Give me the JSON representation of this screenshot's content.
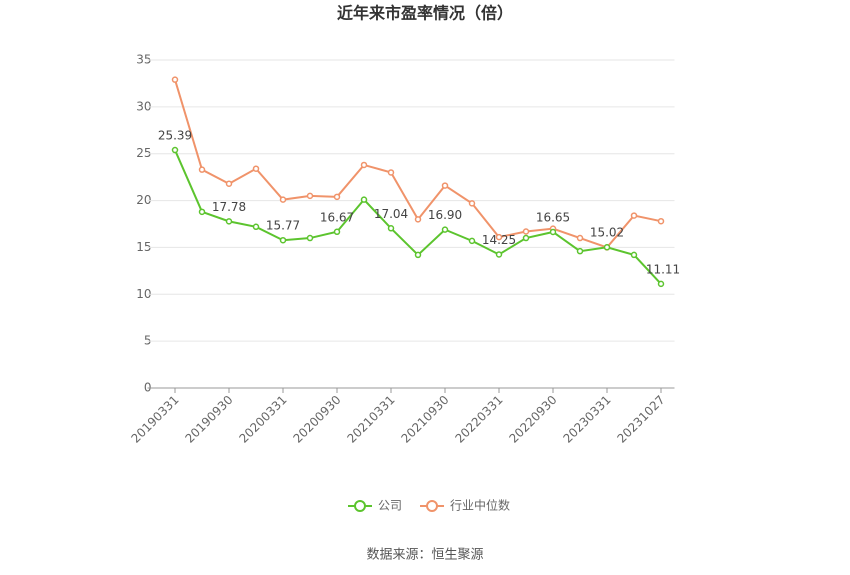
{
  "chart_data": {
    "type": "line",
    "title": "近年来市盈率情况（倍）",
    "source": "数据来源：恒生聚源",
    "categories": [
      "20190331",
      null,
      "20190930",
      null,
      "20200331",
      null,
      "20200930",
      null,
      "20210331",
      null,
      "20210930",
      null,
      "20220331",
      null,
      "20220930",
      null,
      "20230331",
      null,
      "20231027"
    ],
    "series": [
      {
        "name": "公司",
        "color": "#5cc42e",
        "values": [
          25.39,
          18.8,
          17.78,
          17.2,
          15.77,
          16.0,
          16.67,
          20.1,
          17.04,
          14.2,
          16.9,
          15.7,
          14.25,
          16.0,
          16.65,
          14.6,
          15.02,
          14.2,
          11.11
        ],
        "value_labels": [
          "25.39",
          null,
          "17.78",
          null,
          "15.77",
          null,
          "16.67",
          null,
          "17.04",
          null,
          "16.90",
          null,
          "14.25",
          null,
          "16.65",
          null,
          "15.02",
          null,
          "11.11"
        ]
      },
      {
        "name": "行业中位数",
        "color": "#f0936a",
        "values": [
          32.9,
          23.3,
          21.8,
          23.4,
          20.1,
          20.5,
          20.4,
          23.8,
          23.0,
          18.0,
          21.6,
          19.7,
          16.1,
          16.7,
          17.0,
          16.0,
          15.0,
          18.4,
          17.8
        ]
      }
    ],
    "ylim": [
      0,
      35
    ],
    "yticks": [
      0,
      5,
      10,
      15,
      20,
      25,
      30,
      35
    ],
    "grid": true,
    "legend": "bottom"
  }
}
